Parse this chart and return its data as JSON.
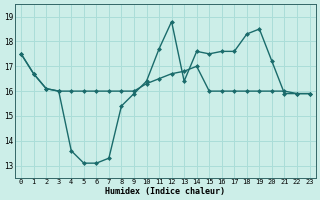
{
  "title": "",
  "xlabel": "Humidex (Indice chaleur)",
  "x": [
    0,
    1,
    2,
    3,
    4,
    5,
    6,
    7,
    8,
    9,
    10,
    11,
    12,
    13,
    14,
    15,
    16,
    17,
    18,
    19,
    20,
    21,
    22,
    23
  ],
  "line1": [
    17.5,
    16.7,
    16.1,
    16.0,
    13.6,
    13.1,
    13.1,
    13.3,
    15.4,
    15.9,
    16.4,
    17.7,
    18.8,
    16.4,
    17.6,
    17.5,
    17.6,
    17.6,
    18.3,
    18.5,
    17.2,
    15.9,
    15.9,
    15.9
  ],
  "line2": [
    17.5,
    16.7,
    16.1,
    16.0,
    16.0,
    16.0,
    16.0,
    16.0,
    16.0,
    16.0,
    16.3,
    16.5,
    16.7,
    16.8,
    17.0,
    16.0,
    16.0,
    16.0,
    16.0,
    16.0,
    16.0,
    16.0,
    15.9,
    15.9
  ],
  "ylim": [
    12.5,
    19.5
  ],
  "yticks": [
    13,
    14,
    15,
    16,
    17,
    18,
    19
  ],
  "bg_color": "#cceee8",
  "grid_color": "#aaddd8",
  "line_color": "#1a6b6b",
  "line_width": 1.0,
  "marker_size": 2.5
}
